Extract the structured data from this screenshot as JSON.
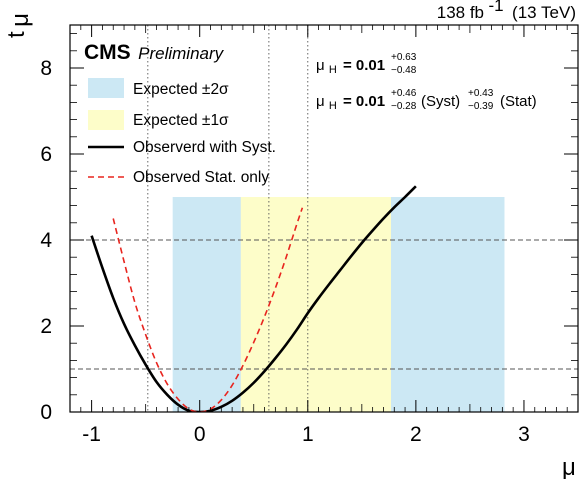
{
  "header": {
    "lumi_value": "138 fb",
    "lumi_exp": "-1",
    "energy": "(13 TeV)"
  },
  "branding": {
    "experiment": "CMS",
    "status": "Preliminary"
  },
  "annotations": {
    "result_total": {
      "symbol": "μ",
      "sub": "H",
      "eq_value": "= 0.01",
      "up": "+0.63",
      "down": "−0.48"
    },
    "result_split": {
      "symbol": "μ",
      "sub": "H",
      "eq_value": "= 0.01",
      "syst_up": "+0.46",
      "syst_down": "−0.28",
      "syst_label": "(Syst)",
      "stat_up": "+0.43",
      "stat_down": "−0.39",
      "stat_label": "(Stat)"
    }
  },
  "chart_data": {
    "type": "line",
    "xlabel": "μ",
    "xlabel_sub": "H",
    "ylabel": "t",
    "ylabel_sub": "μ",
    "xlim": [
      -1.2,
      3.5
    ],
    "ylim": [
      0,
      9
    ],
    "x_ticks": [
      -1,
      0,
      1,
      2,
      3
    ],
    "x_tick_labels": [
      "-1",
      "0",
      "1",
      "2",
      "3"
    ],
    "y_ticks": [
      0,
      2,
      4,
      6,
      8
    ],
    "y_tick_labels": [
      "0",
      "2",
      "4",
      "6",
      "8"
    ],
    "bands": [
      {
        "name": "Expected ±2σ",
        "x_low": -0.25,
        "x_high": 2.82,
        "y_top": 5.0,
        "color": "#cce8f4"
      },
      {
        "name": "Expected ±1σ",
        "x_low": 0.38,
        "x_high": 1.77,
        "y_top": 5.0,
        "color": "#fdfdc9"
      }
    ],
    "reference_lines": {
      "horizontal": [
        1,
        4
      ],
      "vertical": [
        -0.48,
        0.64,
        1.0
      ]
    },
    "series": [
      {
        "name": "Observerd with Syst.",
        "color": "#000000",
        "dash": "solid",
        "x": [
          -1.0,
          -0.9,
          -0.8,
          -0.7,
          -0.6,
          -0.5,
          -0.4,
          -0.3,
          -0.2,
          -0.1,
          0.0,
          0.1,
          0.2,
          0.3,
          0.4,
          0.5,
          0.6,
          0.7,
          0.8,
          0.9,
          1.0,
          1.1,
          1.2,
          1.3,
          1.4,
          1.5,
          1.6,
          1.7,
          1.8,
          1.9,
          2.0
        ],
        "y": [
          4.1,
          3.35,
          2.65,
          2.05,
          1.55,
          1.1,
          0.7,
          0.4,
          0.17,
          0.03,
          0.0,
          0.03,
          0.12,
          0.26,
          0.45,
          0.68,
          0.95,
          1.25,
          1.57,
          1.92,
          2.3,
          2.65,
          2.98,
          3.3,
          3.62,
          3.93,
          4.22,
          4.5,
          4.76,
          5.0,
          5.25
        ]
      },
      {
        "name": "Observed Stat. only",
        "color": "#e8251f",
        "dash": "dashed",
        "x": [
          -0.8,
          -0.7,
          -0.6,
          -0.5,
          -0.4,
          -0.3,
          -0.2,
          -0.1,
          0.0,
          0.1,
          0.2,
          0.3,
          0.4,
          0.5,
          0.6,
          0.7,
          0.8,
          0.9,
          0.95
        ],
        "y": [
          4.5,
          3.5,
          2.55,
          1.8,
          1.15,
          0.65,
          0.3,
          0.07,
          0.0,
          0.07,
          0.28,
          0.62,
          1.08,
          1.62,
          2.22,
          2.88,
          3.6,
          4.38,
          4.75
        ]
      }
    ],
    "legend": {
      "placement": "top-left",
      "entries": [
        "Expected ±2σ",
        "Expected ±1σ",
        "Observerd with Syst.",
        "Observed Stat. only"
      ]
    }
  }
}
